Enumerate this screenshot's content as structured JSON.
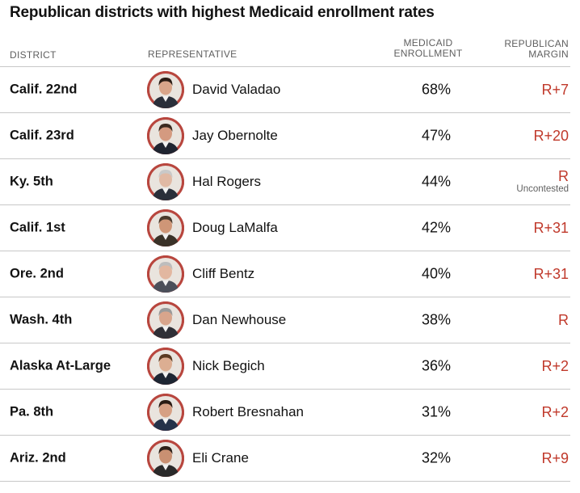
{
  "title": "Republican districts with highest Medicaid enrollment rates",
  "colors": {
    "margin_text": "#c0392b",
    "avatar_ring": "#b8463e",
    "rule": "#c8c8c8"
  },
  "headers": {
    "district": "DISTRICT",
    "representative": "REPRESENTATIVE",
    "enrollment_line1": "MEDICAID",
    "enrollment_line2": "ENROLLMENT",
    "margin_line1": "REPUBLICAN",
    "margin_line2": "MARGIN"
  },
  "rows": [
    {
      "district": "Calif. 22nd",
      "representative": "David Valadao",
      "enrollment": "68%",
      "margin": "R+7",
      "note": "",
      "avatar": "portrait-icon"
    },
    {
      "district": "Calif. 23rd",
      "representative": "Jay Obernolte",
      "enrollment": "47%",
      "margin": "R+20",
      "note": "",
      "avatar": "portrait-icon"
    },
    {
      "district": "Ky. 5th",
      "representative": "Hal Rogers",
      "enrollment": "44%",
      "margin": "R",
      "note": "Uncontested",
      "avatar": "portrait-icon"
    },
    {
      "district": "Calif. 1st",
      "representative": "Doug LaMalfa",
      "enrollment": "42%",
      "margin": "R+31",
      "note": "",
      "avatar": "portrait-icon"
    },
    {
      "district": "Ore. 2nd",
      "representative": "Cliff Bentz",
      "enrollment": "40%",
      "margin": "R+31",
      "note": "",
      "avatar": "portrait-icon"
    },
    {
      "district": "Wash. 4th",
      "representative": "Dan Newhouse",
      "enrollment": "38%",
      "margin": "R",
      "note": "",
      "avatar": "portrait-icon"
    },
    {
      "district": "Alaska At-Large",
      "representative": "Nick Begich",
      "enrollment": "36%",
      "margin": "R+2",
      "note": "",
      "avatar": "portrait-icon"
    },
    {
      "district": "Pa. 8th",
      "representative": "Robert Bresnahan",
      "enrollment": "31%",
      "margin": "R+2",
      "note": "",
      "avatar": "portrait-icon"
    },
    {
      "district": "Ariz. 2nd",
      "representative": "Eli Crane",
      "enrollment": "32%",
      "margin": "R+9",
      "note": "",
      "avatar": "portrait-icon"
    }
  ]
}
